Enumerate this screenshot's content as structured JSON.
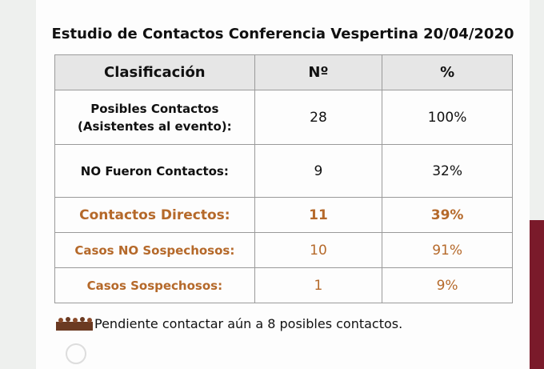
{
  "title": "Estudio de Contactos Conferencia Vespertina 20/04/2020",
  "table": {
    "header": [
      "Clasificación",
      "Nº",
      "%"
    ],
    "rows": [
      {
        "label": [
          "Posibles Contactos",
          "(Asistentes al evento):"
        ],
        "number": "28",
        "percent": "100%"
      },
      {
        "label": [
          "NO Fueron Contactos:"
        ],
        "number": "9",
        "percent": "32%"
      },
      {
        "label": [
          "Contactos Directos:"
        ],
        "number": "11",
        "percent": "39%"
      },
      {
        "label": [
          "Casos NO Sospechosos:"
        ],
        "number": "10",
        "percent": "91%"
      },
      {
        "label": [
          "Casos Sospechosos:"
        ],
        "number": "1",
        "percent": "9%"
      }
    ]
  },
  "footnote": "Pendiente contactar aún a 8 posibles contactos."
}
